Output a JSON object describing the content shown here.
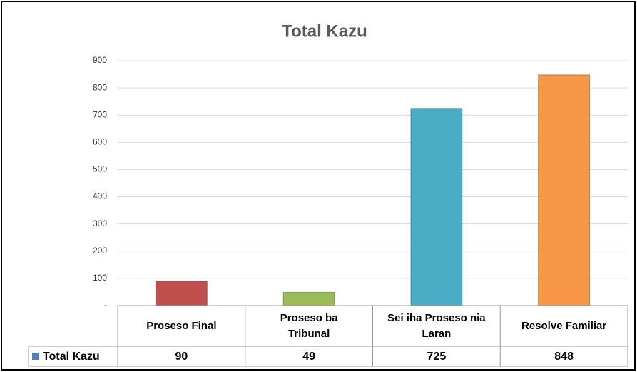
{
  "chart_data": {
    "type": "bar",
    "title": "Total Kazu",
    "categories": [
      "Proseso Final",
      "Proseso ba Tribunal",
      "Sei iha Proseso nia Laran",
      "Resolve Familiar"
    ],
    "series": [
      {
        "name": "Total Kazu",
        "color": "#4f81bd",
        "values": [
          90,
          49,
          725,
          848
        ]
      }
    ],
    "colors": [
      "#c0504d",
      "#9bbb59",
      "#4bacc6",
      "#f79646"
    ],
    "ylim": [
      0,
      900
    ],
    "yticks": [
      {
        "value": 0,
        "label": "-"
      },
      100,
      200,
      300,
      400,
      500,
      600,
      700,
      800,
      900
    ],
    "grid": true
  }
}
